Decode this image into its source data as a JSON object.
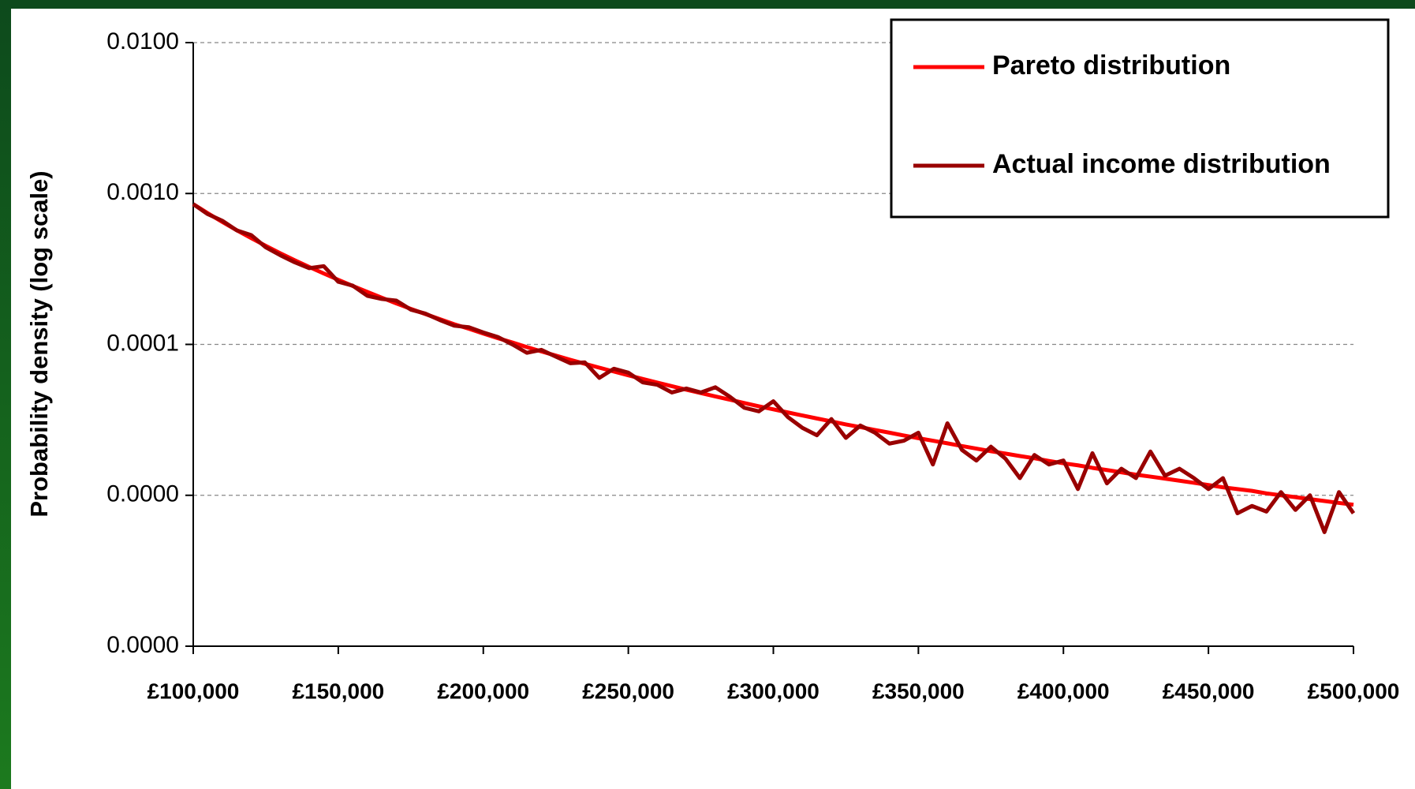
{
  "chart_data": {
    "type": "line",
    "y_label": "Probability density (log scale)",
    "log_y": true,
    "grid": true,
    "legend": "top-right",
    "xlim": [
      100000,
      500000
    ],
    "xticks": [
      {
        "value": 100000,
        "label": "£100,000"
      },
      {
        "value": 150000,
        "label": "£150,000"
      },
      {
        "value": 200000,
        "label": "£200,000"
      },
      {
        "value": 250000,
        "label": "£250,000"
      },
      {
        "value": 300000,
        "label": "£300,000"
      },
      {
        "value": 350000,
        "label": "£350,000"
      },
      {
        "value": 400000,
        "label": "£400,000"
      },
      {
        "value": 450000,
        "label": "£450,000"
      },
      {
        "value": 500000,
        "label": "£500,000"
      }
    ],
    "ylim": [
      1e-06,
      0.01
    ],
    "yticks": [
      {
        "value": 0.01,
        "label": "0.0100"
      },
      {
        "value": 0.001,
        "label": "0.0010"
      },
      {
        "value": 0.0001,
        "label": "0.0001"
      },
      {
        "value": 1e-05,
        "label": "0.0000"
      },
      {
        "value": 1e-06,
        "label": "0.0000"
      }
    ],
    "x": [
      100000,
      105000,
      110000,
      115000,
      120000,
      125000,
      130000,
      135000,
      140000,
      145000,
      150000,
      155000,
      160000,
      165000,
      170000,
      175000,
      180000,
      185000,
      190000,
      195000,
      200000,
      205000,
      210000,
      215000,
      220000,
      225000,
      230000,
      235000,
      240000,
      245000,
      250000,
      255000,
      260000,
      265000,
      270000,
      275000,
      280000,
      285000,
      290000,
      295000,
      300000,
      305000,
      310000,
      315000,
      320000,
      325000,
      330000,
      335000,
      340000,
      345000,
      350000,
      355000,
      360000,
      365000,
      370000,
      375000,
      380000,
      385000,
      390000,
      395000,
      400000,
      405000,
      410000,
      415000,
      420000,
      425000,
      430000,
      435000,
      440000,
      445000,
      450000,
      455000,
      460000,
      465000,
      470000,
      475000,
      480000,
      485000,
      490000,
      495000,
      500000
    ],
    "series": [
      {
        "name": "Pareto distribution",
        "color": "#ff0000",
        "values": [
          0.00085,
          0.00074,
          0.000648,
          0.000571,
          0.000506,
          0.00045,
          0.000402,
          0.000361,
          0.000326,
          0.000295,
          0.000268,
          0.000244,
          0.000223,
          0.000204,
          0.000187,
          0.000172,
          0.000159,
          0.000147,
          0.000136,
          0.000127,
          0.000118,
          0.00011,
          0.000103,
          9.6e-05,
          8.99e-05,
          8.43e-05,
          7.91e-05,
          7.44e-05,
          7.01e-05,
          6.61e-05,
          6.24e-05,
          5.9e-05,
          5.58e-05,
          5.29e-05,
          5.01e-05,
          4.76e-05,
          4.52e-05,
          4.3e-05,
          4.09e-05,
          3.89e-05,
          3.71e-05,
          3.54e-05,
          3.38e-05,
          3.23e-05,
          3.09e-05,
          2.95e-05,
          2.83e-05,
          2.71e-05,
          2.6e-05,
          2.49e-05,
          2.39e-05,
          2.3e-05,
          2.21e-05,
          2.12e-05,
          2.04e-05,
          1.96e-05,
          1.89e-05,
          1.82e-05,
          1.76e-05,
          1.69e-05,
          1.63e-05,
          1.58e-05,
          1.52e-05,
          1.47e-05,
          1.42e-05,
          1.37e-05,
          1.33e-05,
          1.29e-05,
          1.25e-05,
          1.21e-05,
          1.17e-05,
          1.13e-05,
          1.1e-05,
          1.07e-05,
          1.03e-05,
          1e-05,
          9.72e-06,
          9.43e-06,
          9.16e-06,
          8.9e-06,
          8.66e-06
        ]
      },
      {
        "name": "Actual income distribution",
        "color": "#990000",
        "values": [
          0.00085,
          0.00073,
          0.00066,
          0.00057,
          0.00053,
          0.00044,
          0.00039,
          0.00035,
          0.00032,
          0.00033,
          0.00026,
          0.000245,
          0.00021,
          0.0002,
          0.000195,
          0.00017,
          0.00016,
          0.000145,
          0.000133,
          0.00013,
          0.00012,
          0.000112,
          0.0001,
          8.8e-05,
          9.2e-05,
          8.3e-05,
          7.5e-05,
          7.6e-05,
          6e-05,
          6.9e-05,
          6.5e-05,
          5.6e-05,
          5.4e-05,
          4.8e-05,
          5.1e-05,
          4.8e-05,
          5.2e-05,
          4.5e-05,
          3.8e-05,
          3.6e-05,
          4.2e-05,
          3.3e-05,
          2.8e-05,
          2.5e-05,
          3.2e-05,
          2.4e-05,
          2.9e-05,
          2.6e-05,
          2.2e-05,
          2.3e-05,
          2.6e-05,
          1.6e-05,
          3e-05,
          2e-05,
          1.7e-05,
          2.1e-05,
          1.75e-05,
          1.3e-05,
          1.85e-05,
          1.6e-05,
          1.7e-05,
          1.1e-05,
          1.9e-05,
          1.2e-05,
          1.5e-05,
          1.3e-05,
          1.95e-05,
          1.35e-05,
          1.5e-05,
          1.3e-05,
          1.1e-05,
          1.3e-05,
          7.6e-06,
          8.5e-06,
          7.8e-06,
          1.05e-05,
          8e-06,
          1e-05,
          5.7e-06,
          1.05e-05,
          7.6e-06
        ]
      }
    ]
  }
}
